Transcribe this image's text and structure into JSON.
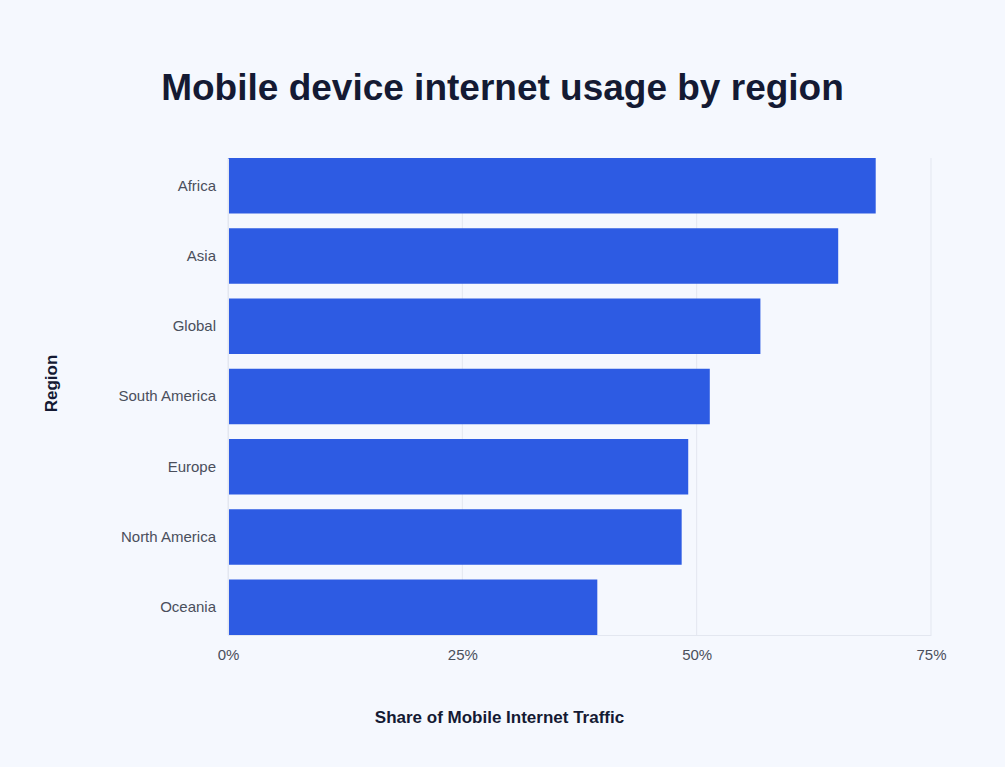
{
  "chart_data": {
    "type": "bar",
    "orientation": "horizontal",
    "title": "Mobile device internet usage by region",
    "x_label": "Share of Mobile Internet Traffic",
    "y_label": "Region",
    "categories": [
      "Africa",
      "Asia",
      "Global",
      "South America",
      "Europe",
      "North America",
      "Oceania"
    ],
    "values": [
      69.1,
      65.1,
      56.8,
      51.4,
      49.1,
      48.4,
      39.4
    ],
    "color": "#2d5be3",
    "xlim": [
      0,
      75
    ],
    "xticks": [
      {
        "value": 0,
        "label": "0%"
      },
      {
        "value": 25,
        "label": "25%"
      },
      {
        "value": 50,
        "label": "50%"
      },
      {
        "value": 75,
        "label": "75%"
      }
    ],
    "grid": true
  }
}
